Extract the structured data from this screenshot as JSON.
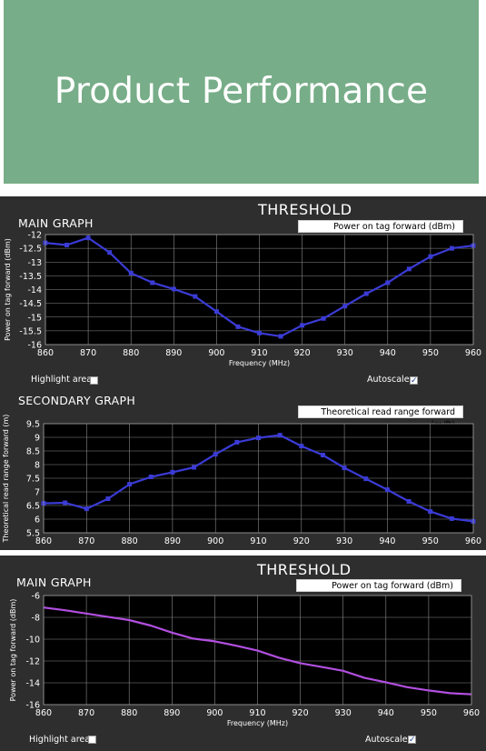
{
  "banner": {
    "title": "Product Performance",
    "color": "#77ad88"
  },
  "panel1": {
    "threshold_label": "THRESHOLD",
    "main": {
      "graph_title": "MAIN GRAPH",
      "dropdown_value": "Power on tag forward (dBm)",
      "highlight_label": "Highlight area",
      "highlight_checked": false,
      "autoscale_label": "Autoscale",
      "autoscale_checked": true
    },
    "secondary": {
      "graph_title": "SECONDARY GRAPH",
      "dropdown_value": "Theoretical read range forward (m/ft)"
    }
  },
  "panel2": {
    "threshold_label": "THRESHOLD",
    "main": {
      "graph_title": "MAIN GRAPH",
      "dropdown_value": "Power on tag forward (dBm)",
      "highlight_label": "Highlight area",
      "highlight_checked": false,
      "autoscale_label": "Autoscale",
      "autoscale_checked": true
    }
  },
  "chart_data": [
    {
      "type": "line",
      "title": "MAIN GRAPH",
      "xlabel": "Frequency (MHz)",
      "ylabel": "Power on tag forward (dBm)",
      "xlim": [
        860,
        960
      ],
      "ylim": [
        -16,
        -12
      ],
      "xticks": [
        860,
        870,
        880,
        890,
        900,
        910,
        920,
        930,
        940,
        950,
        960
      ],
      "yticks": [
        -12,
        -12.5,
        -13,
        -13.5,
        -14,
        -14.5,
        -15,
        -15.5,
        -16
      ],
      "ytick_labels": [
        "-12",
        "-12.5",
        "-13",
        "-13.5",
        "-14",
        "-14.5",
        "-15",
        "-15.5",
        "-16"
      ],
      "grid": true,
      "markers": true,
      "color": "#3b3bd6",
      "x": [
        860,
        865,
        870,
        875,
        880,
        885,
        890,
        895,
        900,
        905,
        910,
        915,
        920,
        925,
        930,
        935,
        940,
        945,
        950,
        955,
        960
      ],
      "y": [
        -12.3,
        -12.38,
        -12.12,
        -12.65,
        -13.4,
        -13.75,
        -13.98,
        -14.25,
        -14.8,
        -15.35,
        -15.58,
        -15.7,
        -15.3,
        -15.05,
        -14.6,
        -14.15,
        -13.75,
        -13.25,
        -12.8,
        -12.5,
        -12.4
      ]
    },
    {
      "type": "line",
      "title": "SECONDARY GRAPH",
      "xlabel": "",
      "ylabel": "Theoretical read range forward (m)",
      "xlim": [
        860,
        960
      ],
      "ylim": [
        5.5,
        9.5
      ],
      "xticks": [
        860,
        870,
        880,
        890,
        900,
        910,
        920,
        930,
        940,
        950,
        960
      ],
      "yticks": [
        9.5,
        9,
        8.5,
        8,
        7.5,
        7,
        6.5,
        6,
        5.5
      ],
      "ytick_labels": [
        "9.5",
        "9",
        "8.5",
        "8",
        "7.5",
        "7",
        "6.5",
        "6",
        "5.5"
      ],
      "grid": true,
      "markers": true,
      "color": "#3b3bd6",
      "x": [
        860,
        865,
        870,
        875,
        880,
        885,
        890,
        895,
        900,
        905,
        910,
        915,
        920,
        925,
        930,
        935,
        940,
        945,
        950,
        955,
        960
      ],
      "y": [
        6.58,
        6.6,
        6.38,
        6.75,
        7.28,
        7.55,
        7.72,
        7.9,
        8.38,
        8.82,
        8.98,
        9.08,
        8.68,
        8.35,
        7.88,
        7.48,
        7.08,
        6.65,
        6.28,
        6.02,
        5.92
      ]
    },
    {
      "type": "line",
      "title": "MAIN GRAPH",
      "xlabel": "Frequency (MHz)",
      "ylabel": "Power on tag forward (dBm)",
      "xlim": [
        860,
        960
      ],
      "ylim": [
        -16,
        -6
      ],
      "xticks": [
        860,
        870,
        880,
        890,
        900,
        910,
        920,
        930,
        940,
        950,
        960
      ],
      "yticks": [
        -6,
        -8,
        -10,
        -12,
        -14,
        -16
      ],
      "ytick_labels": [
        "-6",
        "-8",
        "-10",
        "-12",
        "-14",
        "-16"
      ],
      "grid": true,
      "markers": false,
      "color": "#b24fe0",
      "x": [
        860,
        865,
        870,
        875,
        880,
        885,
        890,
        895,
        900,
        905,
        910,
        915,
        920,
        925,
        930,
        935,
        940,
        945,
        950,
        955,
        960
      ],
      "y": [
        -7.1,
        -7.35,
        -7.65,
        -7.95,
        -8.25,
        -8.75,
        -9.4,
        -9.95,
        -10.2,
        -10.6,
        -11.05,
        -11.7,
        -12.2,
        -12.55,
        -12.9,
        -13.55,
        -13.95,
        -14.4,
        -14.7,
        -14.95,
        -15.05
      ]
    }
  ]
}
